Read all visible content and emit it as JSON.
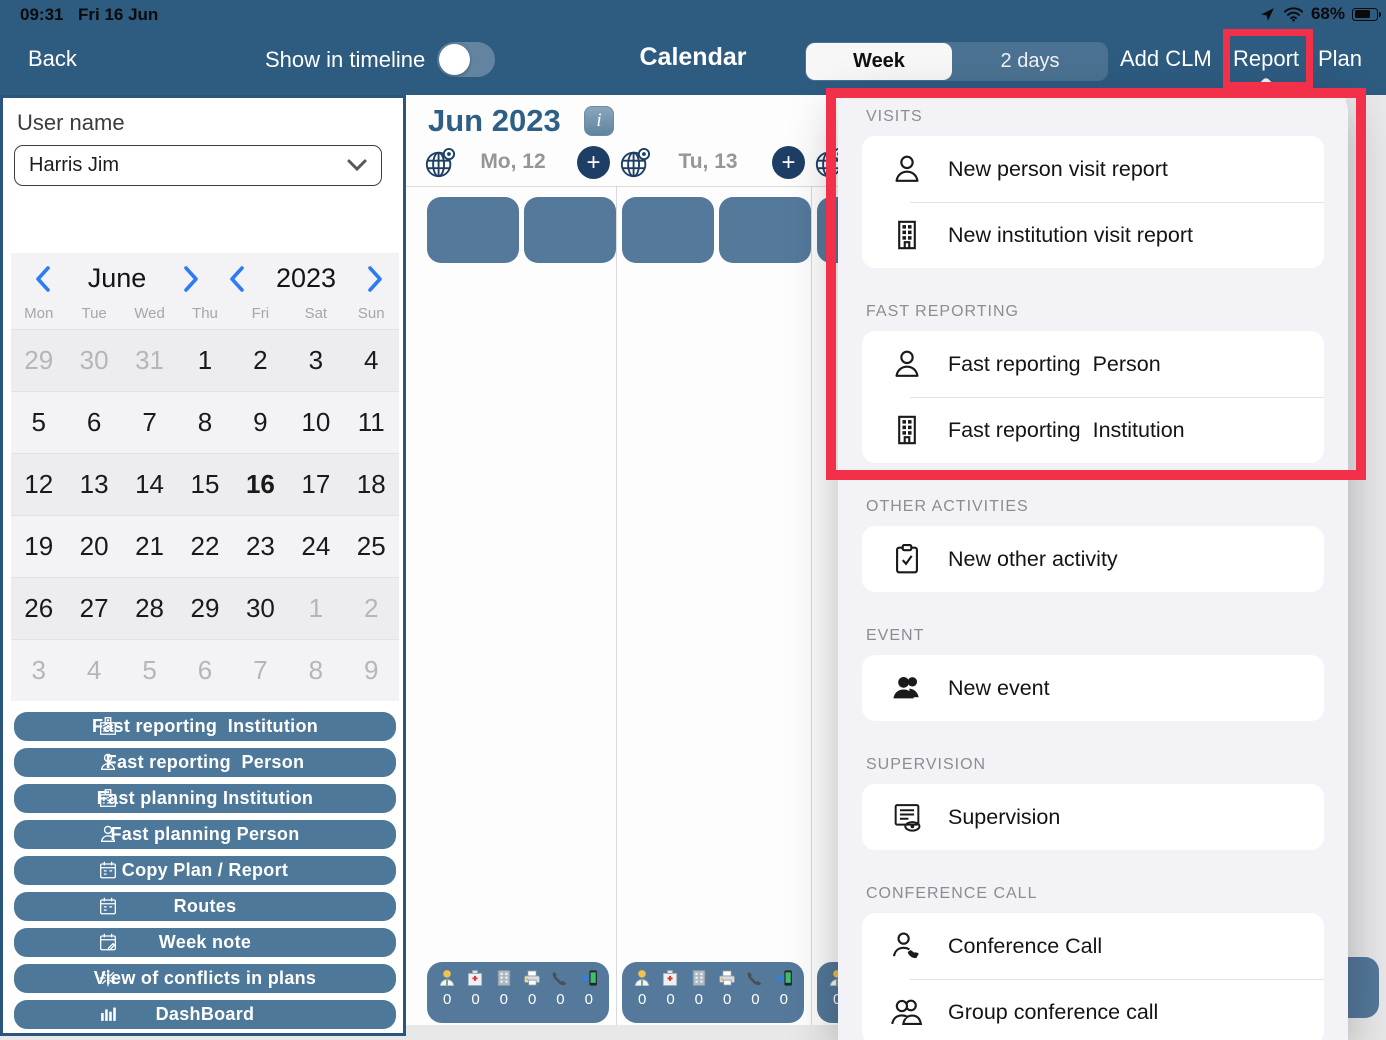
{
  "colors": {
    "navbar": "#2e5b80",
    "steel_button": "#4d7899",
    "event_block": "#54799b",
    "navy_accent": "#1d3f66",
    "annotation_red": "#f23049",
    "ios_blue": "#2e7cf5",
    "popover_bg": "#f2f2f7"
  },
  "status_bar": {
    "time": "09:31",
    "date": "Fri 16 Jun",
    "battery_percent": "68%",
    "icons": [
      "location-icon",
      "wifi-icon",
      "battery-icon"
    ]
  },
  "nav": {
    "back": "Back",
    "timeline_label": "Show in timeline",
    "toggle_state": "off",
    "title": "Calendar",
    "segments": [
      "Week",
      "2 days"
    ],
    "selected_segment": "Week",
    "actions": [
      "Add CLM",
      "Report",
      "Plan"
    ]
  },
  "sidebar": {
    "user_label": "User name",
    "user_value": "Harris Jim",
    "calendar": {
      "month": "June",
      "year": "2023",
      "today": "16",
      "weekdays": [
        "Mon",
        "Tue",
        "Wed",
        "Thu",
        "Fri",
        "Sat",
        "Sun"
      ],
      "weeks": [
        [
          {
            "t": "29",
            "m": 1
          },
          {
            "t": "30",
            "m": 1
          },
          {
            "t": "31",
            "m": 1
          },
          {
            "t": "1",
            "m": 0
          },
          {
            "t": "2",
            "m": 0
          },
          {
            "t": "3",
            "m": 0
          },
          {
            "t": "4",
            "m": 0
          }
        ],
        [
          {
            "t": "5",
            "m": 0
          },
          {
            "t": "6",
            "m": 0
          },
          {
            "t": "7",
            "m": 0
          },
          {
            "t": "8",
            "m": 0
          },
          {
            "t": "9",
            "m": 0
          },
          {
            "t": "10",
            "m": 0
          },
          {
            "t": "11",
            "m": 0
          }
        ],
        [
          {
            "t": "12",
            "m": 0
          },
          {
            "t": "13",
            "m": 0
          },
          {
            "t": "14",
            "m": 0
          },
          {
            "t": "15",
            "m": 0
          },
          {
            "t": "16",
            "m": 0
          },
          {
            "t": "17",
            "m": 0
          },
          {
            "t": "18",
            "m": 0
          }
        ],
        [
          {
            "t": "19",
            "m": 0
          },
          {
            "t": "20",
            "m": 0
          },
          {
            "t": "21",
            "m": 0
          },
          {
            "t": "22",
            "m": 0
          },
          {
            "t": "23",
            "m": 0
          },
          {
            "t": "24",
            "m": 0
          },
          {
            "t": "25",
            "m": 0
          }
        ],
        [
          {
            "t": "26",
            "m": 0
          },
          {
            "t": "27",
            "m": 0
          },
          {
            "t": "28",
            "m": 0
          },
          {
            "t": "29",
            "m": 0
          },
          {
            "t": "30",
            "m": 0
          },
          {
            "t": "1",
            "m": 1
          },
          {
            "t": "2",
            "m": 1
          }
        ],
        [
          {
            "t": "3",
            "m": 1
          },
          {
            "t": "4",
            "m": 1
          },
          {
            "t": "5",
            "m": 1
          },
          {
            "t": "6",
            "m": 1
          },
          {
            "t": "7",
            "m": 1
          },
          {
            "t": "8",
            "m": 1
          },
          {
            "t": "9",
            "m": 1
          }
        ]
      ]
    },
    "buttons": [
      {
        "icon": "hospital-outline-icon",
        "label": "Fast reporting  Institution"
      },
      {
        "icon": "person-outline-icon",
        "label": "Fast reporting  Person"
      },
      {
        "icon": "hospital-outline-icon",
        "label": "Fast planning Institution"
      },
      {
        "icon": "person-outline-icon",
        "label": "Fast planning Person"
      },
      {
        "icon": "calendar-icon",
        "label": "Copy Plan / Report"
      },
      {
        "icon": "calendar-icon",
        "label": "Routes"
      },
      {
        "icon": "calendar-pencil-icon",
        "label": "Week note"
      },
      {
        "icon": "burst-icon",
        "label": "View of conflicts in plans"
      },
      {
        "icon": "bar-chart-icon",
        "label": "DashBoard"
      }
    ]
  },
  "main": {
    "month_title": "Jun 2023",
    "info_label": "i",
    "plus_label": "+",
    "days": [
      {
        "label": "Mo, 12"
      },
      {
        "label": "Tu, 13"
      },
      {
        "label": ""
      }
    ],
    "summary_icons": [
      "doctor-icon",
      "hospital-icon",
      "office-icon",
      "fax-icon",
      "phone-icon",
      "mobile-arrow-icon"
    ],
    "counts": [
      "0",
      "0",
      "0",
      "0",
      "0",
      "0"
    ]
  },
  "menu": {
    "sections": [
      {
        "title": "VISITS",
        "items": [
          {
            "icon": "person-icon",
            "label": "New person visit report"
          },
          {
            "icon": "institution-icon",
            "label": "New institution visit report"
          }
        ]
      },
      {
        "title": "FAST REPORTING",
        "items": [
          {
            "icon": "person-icon",
            "label": "Fast reporting  Person"
          },
          {
            "icon": "institution-icon",
            "label": "Fast reporting  Institution"
          }
        ]
      },
      {
        "title": "OTHER ACTIVITIES",
        "items": [
          {
            "icon": "clipboard-check-icon",
            "label": "New other activity"
          }
        ]
      },
      {
        "title": "EVENT",
        "items": [
          {
            "icon": "people-filled-icon",
            "label": "New event"
          }
        ]
      },
      {
        "title": "SUPERVISION",
        "items": [
          {
            "icon": "supervision-icon",
            "label": "Supervision"
          }
        ]
      },
      {
        "title": "CONFERENCE CALL",
        "items": [
          {
            "icon": "person-phone-icon",
            "label": "Conference Call"
          },
          {
            "icon": "group-call-icon",
            "label": "Group conference call"
          }
        ]
      }
    ]
  }
}
